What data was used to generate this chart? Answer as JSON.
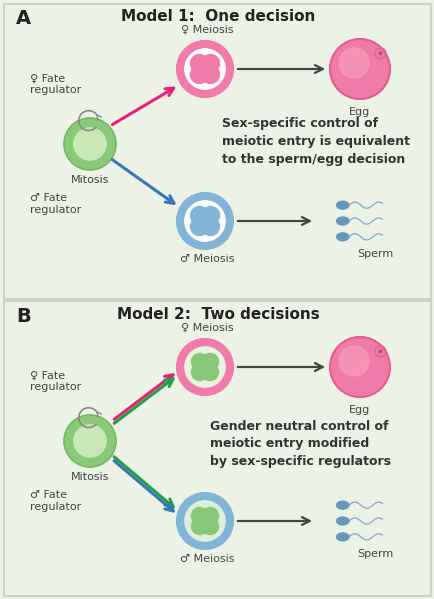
{
  "bg_color": "#edf2e6",
  "panel_A_title": "Model 1:  One decision",
  "panel_B_title": "Model 2:  Two decisions",
  "panel_A_label": "A",
  "panel_B_label": "B",
  "text_A": "Sex-specific control of\nmeiotic entry is equivalent\nto the sperm/egg decision",
  "text_B": "Gender neutral control of\nmeiotic entry modified\nby sex-specific regulators",
  "female_color": "#f07aaa",
  "male_color": "#82b4d8",
  "female_inner": "#f9c0d0",
  "male_inner": "#b8d4ee",
  "green_cell_color": "#8cc87a",
  "green_cell_inner": "#c8e8b8",
  "egg_color": "#f07aaa",
  "egg_light": "#f8b0c8",
  "sperm_head_color": "#8ab8d8",
  "sperm_tail_color": "#8ab8d8",
  "arrow_female_color": "#e8207a",
  "arrow_male_color": "#3878b8",
  "arrow_green_color": "#20a040",
  "arrow_black_color": "#444444",
  "divider_color": "#c8cdc0",
  "label_fontsize": 14,
  "title_fontsize": 11,
  "text_fontsize": 9
}
